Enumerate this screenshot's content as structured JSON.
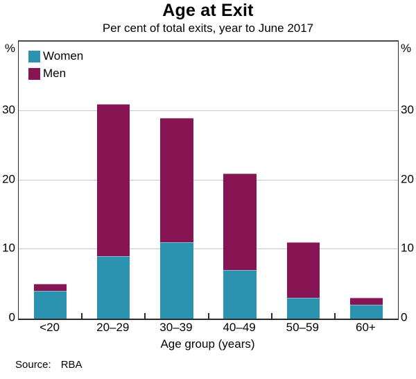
{
  "chart_data": {
    "type": "bar",
    "stacked": true,
    "title": "Age at Exit",
    "subtitle": "Per cent of total exits, year to June 2017",
    "categories": [
      "<20",
      "20–29",
      "30–39",
      "40–49",
      "50–59",
      "60+"
    ],
    "series": [
      {
        "name": "Women",
        "color": "#2B93AF",
        "values": [
          4,
          9,
          11,
          7,
          3,
          2
        ]
      },
      {
        "name": "Men",
        "color": "#871453",
        "values": [
          1,
          22,
          18,
          14,
          8,
          1
        ]
      }
    ],
    "totals": [
      5,
      31,
      29,
      21,
      11,
      3
    ],
    "xlabel": "Age group (years)",
    "y_unit": "%",
    "ylim": [
      0,
      40
    ],
    "yticks": [
      0,
      10,
      20,
      30
    ],
    "grid": "horizontal",
    "legend_position": "top-left"
  },
  "source": {
    "label": "Source:",
    "value": "RBA"
  }
}
